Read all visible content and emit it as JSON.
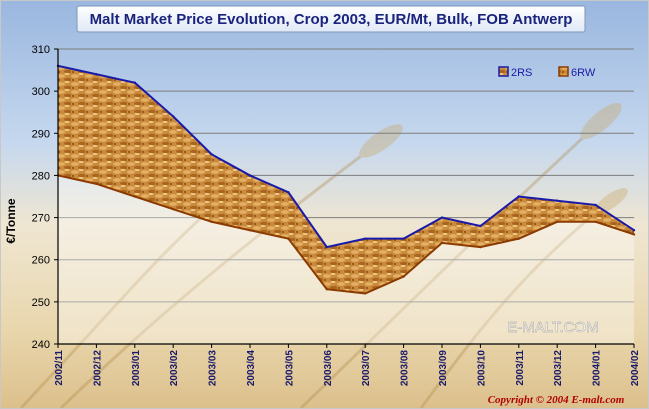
{
  "chart_data": {
    "type": "area",
    "title": "Malt Market Price Evolution, Crop 2003, EUR/Mt, Bulk, FOB Antwerp",
    "ylabel": "€/Tonne",
    "xlabel": "",
    "ylim": [
      240,
      310
    ],
    "yticks": [
      240,
      250,
      260,
      270,
      280,
      290,
      300,
      310
    ],
    "grid": true,
    "legend_position": "top-right",
    "categories": [
      "2002/11",
      "2002/12",
      "2003/01",
      "2003/02",
      "2003/03",
      "2003/04",
      "2003/05",
      "2003/06",
      "2003/07",
      "2003/08",
      "2003/09",
      "2003/10",
      "2003/11",
      "2003/12",
      "2004/01",
      "2004/02"
    ],
    "series": [
      {
        "name": "2RS",
        "color": "#1a1aa8",
        "values": [
          306,
          304,
          302,
          294,
          285,
          280,
          276,
          263,
          265,
          265,
          270,
          268,
          275,
          274,
          273,
          267
        ]
      },
      {
        "name": "6RW",
        "color": "#8b3a00",
        "values": [
          280,
          278,
          275,
          272,
          269,
          267,
          265,
          253,
          252,
          256,
          264,
          263,
          265,
          269,
          269,
          266
        ]
      }
    ],
    "watermark": "E-MALT.COM",
    "copyright": "Copyright © 2004 E-malt.com"
  }
}
